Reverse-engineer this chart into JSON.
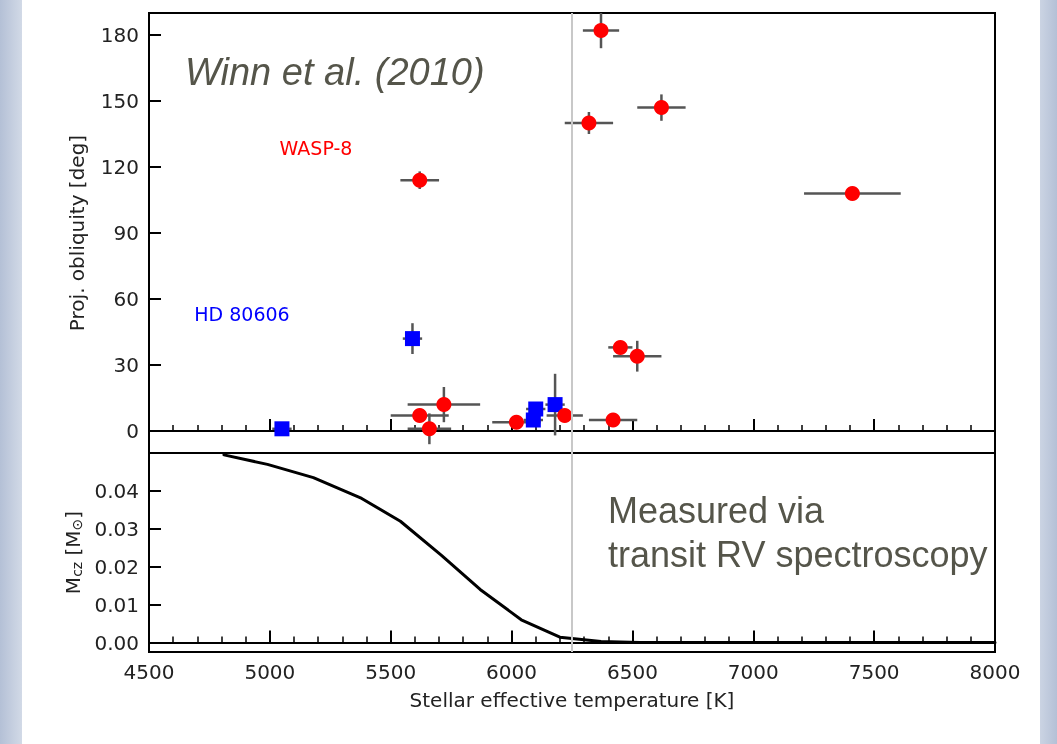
{
  "chart_data": [
    {
      "type": "scatter",
      "ylabel": "Proj. obliquity [deg]",
      "annotations": [
        "Winn et al. (2010)",
        "WASP-8",
        "HD 80606"
      ],
      "xlim": [
        4500,
        8000
      ],
      "xticks": [
        4500,
        5000,
        5500,
        6000,
        6500,
        7000,
        7500,
        8000
      ],
      "ylim": [
        -10,
        190
      ],
      "yticks": [
        0,
        30,
        60,
        90,
        120,
        150,
        180
      ],
      "tick_labels": "y",
      "ref_lines": [
        {
          "axis": "x",
          "value": 6250,
          "color": "#c8c8c8"
        }
      ],
      "series": [
        {
          "color": "#0000ff",
          "marker": "square",
          "x": [
            5050,
            5590,
            6090,
            6100,
            6180
          ],
          "values": [
            1,
            42,
            5,
            10,
            12
          ],
          "errors": [
            null,
            7,
            null,
            null,
            14
          ],
          "xerrors": [
            40,
            40,
            40,
            40,
            40
          ]
        },
        {
          "color": "#ff0000",
          "marker": "circle",
          "x": [
            5620,
            5620,
            5660,
            5720,
            6020,
            6220,
            6370,
            6320,
            6620,
            7410,
            6450,
            6520,
            6420
          ],
          "values": [
            114,
            7,
            1,
            12,
            4,
            7,
            182,
            140,
            147,
            108,
            38,
            34,
            5
          ],
          "errors": [
            4,
            null,
            7,
            8,
            null,
            null,
            8,
            5,
            6,
            null,
            null,
            7,
            null
          ],
          "xerrors": [
            80,
            120,
            90,
            150,
            100,
            75,
            75,
            100,
            100,
            200,
            50,
            100,
            100
          ]
        }
      ]
    },
    {
      "type": "line",
      "xlabel": "Stellar effective temperature [K]",
      "ylabel": "M$_{cz}$ [M$_{⊙}$]",
      "annotations": [
        "Measured via\ntransit RV spectroscopy"
      ],
      "xlim": [
        4500,
        8000
      ],
      "xticks": [
        4500,
        5000,
        5500,
        6000,
        6500,
        7000,
        7500,
        8000
      ],
      "ylim": [
        -0.0025,
        0.05
      ],
      "yticks": [
        {
          "value": 0,
          "label": "0.00"
        },
        {
          "value": 0.01,
          "label": "0.01"
        },
        {
          "value": 0.02,
          "label": "0.02"
        },
        {
          "value": 0.03,
          "label": "0.03"
        },
        {
          "value": 0.04,
          "label": "0.04"
        }
      ],
      "ref_lines": [
        {
          "axis": "x",
          "value": 6250,
          "color": "#c8c8c8"
        }
      ],
      "series": [
        {
          "color": "#000000",
          "x": [
            4810,
            4990,
            5180,
            5380,
            5540,
            5710,
            5870,
            6040,
            6200,
            6370,
            6530,
            8000
          ],
          "values": [
            0.0495,
            0.047,
            0.0435,
            0.038,
            0.032,
            0.023,
            0.014,
            0.006,
            0.0014,
            0.0003,
            0,
            0
          ]
        }
      ]
    }
  ]
}
